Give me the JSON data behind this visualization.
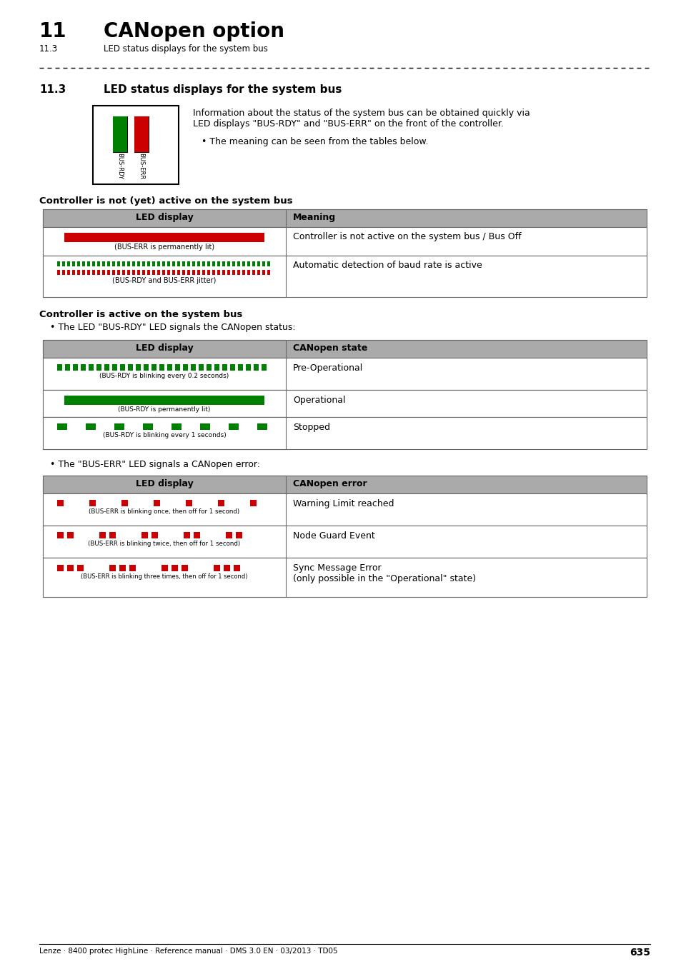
{
  "title_chapter": "11",
  "title_main": "CANopen option",
  "subtitle_section": "11.3",
  "subtitle_text": "LED status displays for the system bus",
  "section_heading": "11.3",
  "section_heading_text": "LED status displays for the system bus",
  "intro_text1": "Information about the status of the system bus can be obtained quickly via\nLED displays \"BUS-RDY\" and \"BUS-ERR\" on the front of the controller.",
  "intro_bullet": "The meaning can be seen from the tables below.",
  "table1_title": "Controller is not (yet) active on the system bus",
  "table1_header": [
    "LED display",
    "Meaning"
  ],
  "table1_rows": [
    {
      "meaning": "Controller is not active on the system bus / Bus Off",
      "label": "(BUS-ERR is permanently lit)",
      "type": "solid_red"
    },
    {
      "meaning": "Automatic detection of baud rate is active",
      "label": "(BUS-RDY and BUS-ERR jitter)",
      "type": "jitter_both"
    }
  ],
  "table2_title": "Controller is active on the system bus",
  "table2_bullet": "The LED \"BUS-RDY\" LED signals the CANopen status:",
  "table2_header": [
    "LED display",
    "CANopen state"
  ],
  "table2_rows": [
    {
      "meaning": "Pre-Operational",
      "label": "(BUS-RDY is blinking every 0.2 seconds)",
      "type": "fast_blink_green"
    },
    {
      "meaning": "Operational",
      "label": "(BUS-RDY is permanently lit)",
      "type": "solid_green"
    },
    {
      "meaning": "Stopped",
      "label": "(BUS-RDY is blinking every 1 seconds)",
      "type": "slow_blink_green"
    }
  ],
  "table3_bullet": "The \"BUS-ERR\" LED signals a CANopen error:",
  "table3_header": [
    "LED display",
    "CANopen error"
  ],
  "table3_rows": [
    {
      "meaning": "Warning Limit reached",
      "label": "(BUS-ERR is blinking once, then off for 1 second)",
      "type": "blink1_red"
    },
    {
      "meaning": "Node Guard Event",
      "label": "(BUS-ERR is blinking twice, then off for 1 second)",
      "type": "blink2_red"
    },
    {
      "meaning": "Sync Message Error\n(only possible in the \"Operational\" state)",
      "label": "(BUS-ERR is blinking three times, then off for 1 second)",
      "type": "blink3_red"
    }
  ],
  "footer_text": "Lenze · 8400 protec HighLine · Reference manual · DMS 3.0 EN · 03/2013 · TD05",
  "footer_page": "635",
  "green": "#008000",
  "red": "#CC0000",
  "header_gray": "#AAAAAA",
  "table_border": "#666666",
  "bg_white": "#ffffff"
}
